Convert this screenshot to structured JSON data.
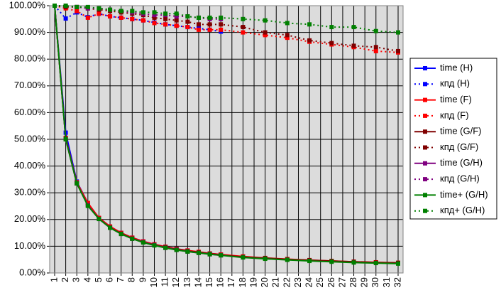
{
  "chart_data": {
    "type": "line",
    "xlim": [
      1,
      32
    ],
    "xticks": [
      1,
      2,
      3,
      4,
      5,
      6,
      7,
      8,
      9,
      10,
      11,
      12,
      13,
      14,
      15,
      16,
      17,
      18,
      19,
      20,
      21,
      22,
      23,
      24,
      25,
      26,
      27,
      28,
      29,
      30,
      31,
      32
    ],
    "ylim": [
      0,
      100
    ],
    "yticks": [
      {
        "value": 0,
        "label": "0.00%"
      },
      {
        "value": 10,
        "label": "10.00%"
      },
      {
        "value": 20,
        "label": "20.00%"
      },
      {
        "value": 30,
        "label": "30.00%"
      },
      {
        "value": 40,
        "label": "40.00%"
      },
      {
        "value": 50,
        "label": "50.00%"
      },
      {
        "value": 60,
        "label": "60.00%"
      },
      {
        "value": 70,
        "label": "70.00%"
      },
      {
        "value": 80,
        "label": "80.00%"
      },
      {
        "value": 90,
        "label": "90.00%"
      },
      {
        "value": 100,
        "label": "100.00%"
      }
    ],
    "grid": true,
    "legend": "right",
    "series": [
      {
        "name": "time (H)",
        "color": "#0000ff",
        "dashed": false,
        "x": [
          1,
          2,
          3,
          4,
          5,
          6,
          7,
          8,
          9,
          10,
          11,
          12,
          13,
          14,
          15,
          16
        ],
        "values": [
          100,
          52.5,
          34.2,
          26.1,
          20.6,
          17.4,
          15,
          13.2,
          11.8,
          10.7,
          9.8,
          9,
          8.4,
          7.8,
          7.3,
          6.9
        ]
      },
      {
        "name": "кпд (H)",
        "color": "#0000ff",
        "dashed": true,
        "x": [
          1,
          2,
          3,
          4,
          5,
          6,
          7,
          8,
          9,
          10,
          11,
          12,
          13,
          14,
          15,
          16
        ],
        "values": [
          100,
          95.2,
          97.5,
          95.7,
          97,
          96,
          95.5,
          95,
          94.5,
          93.7,
          93,
          92.5,
          92,
          91.5,
          91,
          90.3
        ]
      },
      {
        "name": "time (F)",
        "color": "#ff0000",
        "dashed": false,
        "x": [
          1,
          2,
          3,
          4,
          5,
          6,
          7,
          8,
          9,
          10,
          11,
          12,
          13,
          14,
          15,
          16,
          18,
          20,
          22,
          24,
          26,
          28,
          30,
          32
        ],
        "values": [
          100,
          50.5,
          33.9,
          26.2,
          20.6,
          17.4,
          15,
          13.2,
          11.8,
          10.7,
          9.8,
          9,
          8.4,
          7.9,
          7.3,
          6.9,
          6.2,
          5.6,
          5.2,
          4.8,
          4.5,
          4.2,
          4,
          3.8
        ]
      },
      {
        "name": "кпд (F)",
        "color": "#ff0000",
        "dashed": true,
        "x": [
          1,
          2,
          3,
          4,
          5,
          6,
          7,
          8,
          9,
          10,
          11,
          12,
          13,
          14,
          15,
          16,
          18,
          20,
          22,
          24,
          26,
          28,
          30,
          32
        ],
        "values": [
          100,
          99,
          98,
          95.5,
          97,
          96,
          95.5,
          95,
          94.5,
          93.5,
          93,
          92.5,
          92,
          91,
          91,
          91,
          90,
          89,
          88,
          86.5,
          85.5,
          84.5,
          83,
          82.5
        ]
      },
      {
        "name": "time (G/F)",
        "color": "#800000",
        "dashed": false,
        "x": [
          1,
          2,
          3,
          4,
          5,
          6,
          7,
          8,
          9,
          10,
          11,
          12,
          13,
          14,
          15,
          16,
          18,
          20,
          22,
          24,
          26,
          28,
          30,
          32
        ],
        "values": [
          100,
          50.3,
          33.5,
          25.3,
          20.3,
          17,
          14.7,
          12.9,
          11.5,
          10.5,
          9.6,
          8.8,
          8.2,
          7.7,
          7.2,
          6.7,
          6,
          5.6,
          5.1,
          4.8,
          4.5,
          4.2,
          3.9,
          3.8
        ]
      },
      {
        "name": "кпд (G/F)",
        "color": "#800000",
        "dashed": true,
        "x": [
          1,
          2,
          3,
          4,
          5,
          6,
          7,
          8,
          9,
          10,
          11,
          12,
          13,
          14,
          15,
          16,
          18,
          20,
          22,
          24,
          26,
          28,
          30,
          32
        ],
        "values": [
          100,
          99.5,
          99.5,
          99,
          98.5,
          98,
          97.5,
          97,
          96.5,
          95.5,
          95,
          94.5,
          94,
          93,
          93,
          93,
          92,
          90,
          89,
          87,
          86,
          85,
          84.5,
          83
        ]
      },
      {
        "name": "time (G/H)",
        "color": "#800080",
        "dashed": false,
        "x": [
          1,
          2,
          3,
          4,
          5,
          6,
          7,
          8,
          9,
          10,
          11,
          12,
          13,
          14,
          15,
          16
        ],
        "values": [
          100,
          50,
          33.5,
          25.3,
          20.2,
          16.9,
          14.6,
          12.8,
          11.5,
          10.4,
          9.4,
          8.7,
          8,
          7.5,
          7,
          6.6
        ]
      },
      {
        "name": "кпд (G/H)",
        "color": "#800080",
        "dashed": true,
        "x": [
          1,
          2,
          3,
          4,
          5,
          6,
          7,
          8,
          9,
          10,
          11,
          12,
          13,
          14,
          15,
          16
        ],
        "values": [
          100,
          100,
          99.5,
          99,
          99,
          98.5,
          98,
          97.5,
          97,
          96.5,
          96.5,
          96,
          96,
          95.5,
          95,
          95
        ]
      },
      {
        "name": "time+ (G/H)",
        "color": "#008000",
        "dashed": false,
        "x": [
          1,
          2,
          3,
          4,
          5,
          6,
          7,
          8,
          9,
          10,
          11,
          12,
          13,
          14,
          15,
          16,
          18,
          20,
          22,
          24,
          26,
          28,
          30,
          32
        ],
        "values": [
          100,
          50,
          33.5,
          25.1,
          20.2,
          16.9,
          14.6,
          12.8,
          11.4,
          10.3,
          9.4,
          8.6,
          8,
          7.5,
          7,
          6.6,
          5.8,
          5.3,
          4.9,
          4.5,
          4.2,
          3.9,
          3.7,
          3.5
        ]
      },
      {
        "name": "кпд+ (G/H)",
        "color": "#008000",
        "dashed": true,
        "x": [
          1,
          2,
          3,
          4,
          5,
          6,
          7,
          8,
          9,
          10,
          11,
          12,
          13,
          14,
          15,
          16,
          18,
          20,
          22,
          24,
          26,
          28,
          30,
          32
        ],
        "values": [
          100,
          100,
          99.5,
          99.5,
          99,
          98.5,
          98,
          98,
          97.5,
          97.5,
          97,
          97,
          96,
          95.5,
          95.5,
          95.5,
          95,
          94.5,
          93.5,
          93,
          92,
          92,
          90.5,
          90
        ]
      }
    ]
  }
}
